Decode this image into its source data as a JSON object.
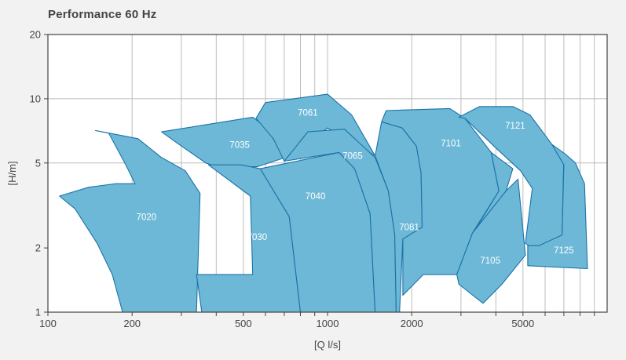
{
  "chart_data": {
    "type": "area",
    "title": "Performance 60 Hz",
    "xlabel": "[Q l/s]",
    "ylabel": "[H/m]",
    "xscale": "log",
    "yscale": "log",
    "xlim": [
      100,
      10000
    ],
    "ylim": [
      1,
      20
    ],
    "grid": true,
    "x_ticks": [
      {
        "value": 100,
        "label": "100"
      },
      {
        "value": 200,
        "label": "200"
      },
      {
        "value": 500,
        "label": "500"
      },
      {
        "value": 1000,
        "label": "1000"
      },
      {
        "value": 2000,
        "label": "2000"
      },
      {
        "value": 5000,
        "label": "5000"
      }
    ],
    "x_gridlines": [
      100,
      200,
      300,
      400,
      500,
      600,
      700,
      800,
      900,
      1000,
      2000,
      3000,
      4000,
      5000,
      6000,
      7000,
      8000,
      9000
    ],
    "y_ticks": [
      {
        "value": 1,
        "label": "1"
      },
      {
        "value": 2,
        "label": "2"
      },
      {
        "value": 5,
        "label": "5"
      },
      {
        "value": 10,
        "label": "10"
      },
      {
        "value": 20,
        "label": "20"
      }
    ],
    "y_gridlines": [
      5,
      10
    ],
    "colors": {
      "fill": "#6db8d6",
      "stroke": "#1b72a8",
      "grid": "#bcbcbc",
      "axis": "#444444",
      "plot_bg": "#ffffff"
    },
    "regions": [
      {
        "name": "7020",
        "label_at": [
          225,
          2.8
        ],
        "points": [
          [
            110,
            3.5
          ],
          [
            140,
            3.85
          ],
          [
            175,
            4.0
          ],
          [
            205,
            4.0
          ],
          [
            190,
            4.9
          ],
          [
            165,
            6.9
          ],
          [
            148,
            7.1
          ],
          [
            210,
            6.5
          ],
          [
            255,
            5.3
          ],
          [
            310,
            4.6
          ],
          [
            350,
            3.6
          ],
          [
            340,
            1.0
          ],
          [
            185,
            1.0
          ],
          [
            170,
            1.5
          ],
          [
            150,
            2.1
          ],
          [
            125,
            3.05
          ]
        ]
      },
      {
        "name": "7035",
        "label_at": [
          485,
          6.1
        ],
        "points": [
          [
            255,
            7.0
          ],
          [
            540,
            8.2
          ],
          [
            600,
            7.4
          ],
          [
            705,
            5.3
          ],
          [
            560,
            4.8
          ],
          [
            405,
            4.8
          ],
          [
            367,
            5.0
          ],
          [
            290,
            6.2
          ]
        ]
      },
      {
        "name": "7061",
        "label_at": [
          850,
          8.6
        ],
        "points": [
          [
            555,
            8.1
          ],
          [
            600,
            9.6
          ],
          [
            1000,
            10.5
          ],
          [
            1220,
            8.4
          ],
          [
            1480,
            5.4
          ],
          [
            1000,
            7.3
          ],
          [
            700,
            5.1
          ],
          [
            640,
            6.5
          ]
        ]
      },
      {
        "name": "7030",
        "label_at": [
          560,
          2.25
        ],
        "points": [
          [
            375,
            4.9
          ],
          [
            490,
            4.9
          ],
          [
            575,
            4.7
          ],
          [
            730,
            2.8
          ],
          [
            800,
            1.0
          ],
          [
            355,
            1.0
          ],
          [
            340,
            1.5
          ],
          [
            540,
            1.5
          ],
          [
            530,
            3.5
          ]
        ]
      },
      {
        "name": "7040",
        "label_at": [
          905,
          3.5
        ],
        "points": [
          [
            575,
            4.7
          ],
          [
            1100,
            5.6
          ],
          [
            1250,
            4.7
          ],
          [
            1420,
            2.9
          ],
          [
            1480,
            1.0
          ],
          [
            800,
            1.0
          ],
          [
            730,
            2.8
          ]
        ]
      },
      {
        "name": "7065",
        "label_at": [
          1230,
          5.4
        ],
        "points": [
          [
            700,
            5.1
          ],
          [
            850,
            7.0
          ],
          [
            1150,
            7.2
          ],
          [
            1480,
            5.3
          ],
          [
            1650,
            3.7
          ],
          [
            1740,
            2.3
          ],
          [
            1760,
            1.0
          ],
          [
            1480,
            1.0
          ],
          [
            1420,
            2.9
          ],
          [
            1250,
            4.7
          ],
          [
            1100,
            5.6
          ]
        ]
      },
      {
        "name": "7081",
        "label_at": [
          1960,
          2.5
        ],
        "points": [
          [
            1480,
            5.4
          ],
          [
            1560,
            7.8
          ],
          [
            1850,
            7.3
          ],
          [
            2080,
            6.0
          ],
          [
            2160,
            4.5
          ],
          [
            2180,
            2.5
          ],
          [
            1860,
            2.2
          ],
          [
            1810,
            1.0
          ],
          [
            1760,
            1.0
          ],
          [
            1740,
            2.3
          ],
          [
            1650,
            3.7
          ]
        ]
      },
      {
        "name": "7101",
        "label_at": [
          2760,
          6.2
        ],
        "points": [
          [
            1560,
            7.8
          ],
          [
            1620,
            8.8
          ],
          [
            2740,
            9.0
          ],
          [
            3100,
            8.1
          ],
          [
            3850,
            5.6
          ],
          [
            4100,
            3.7
          ],
          [
            3300,
            2.35
          ],
          [
            2900,
            1.5
          ],
          [
            2200,
            1.5
          ],
          [
            1860,
            1.2
          ],
          [
            1860,
            2.2
          ],
          [
            2180,
            2.5
          ],
          [
            2160,
            4.5
          ],
          [
            2080,
            6.0
          ],
          [
            1850,
            7.3
          ]
        ]
      },
      {
        "name": "7105",
        "label_at": [
          3820,
          1.75
        ],
        "points": [
          [
            3850,
            5.6
          ],
          [
            4600,
            4.7
          ],
          [
            4350,
            3.7
          ],
          [
            3320,
            2.35
          ],
          [
            4100,
            3.7
          ]
        ]
      },
      {
        "name": "7105_lower",
        "label_at": null,
        "points": [
          [
            2900,
            1.5
          ],
          [
            3300,
            2.35
          ],
          [
            4350,
            3.7
          ],
          [
            4800,
            4.2
          ],
          [
            5100,
            1.85
          ],
          [
            4200,
            1.35
          ],
          [
            3600,
            1.1
          ],
          [
            2950,
            1.35
          ]
        ]
      },
      {
        "name": "7121",
        "label_at": [
          4690,
          7.5
        ],
        "points": [
          [
            2950,
            8.2
          ],
          [
            3500,
            9.2
          ],
          [
            4600,
            9.2
          ],
          [
            5300,
            8.4
          ],
          [
            6350,
            6.1
          ],
          [
            7000,
            5.4
          ],
          [
            6900,
            2.3
          ],
          [
            6200,
            2.05
          ],
          [
            5700,
            1.9
          ],
          [
            5100,
            2.1
          ],
          [
            5400,
            3.8
          ],
          [
            4900,
            4.6
          ],
          [
            4100,
            5.7
          ],
          [
            3100,
            8.1
          ]
        ]
      },
      {
        "name": "7125",
        "label_at": [
          7000,
          1.95
        ],
        "points": [
          [
            6350,
            6.1
          ],
          [
            7100,
            5.5
          ],
          [
            7700,
            5.0
          ],
          [
            8300,
            4.0
          ],
          [
            8500,
            1.6
          ],
          [
            5200,
            1.65
          ],
          [
            5200,
            2.05
          ],
          [
            5700,
            2.05
          ],
          [
            6900,
            2.3
          ],
          [
            7000,
            4.9
          ]
        ]
      }
    ]
  }
}
